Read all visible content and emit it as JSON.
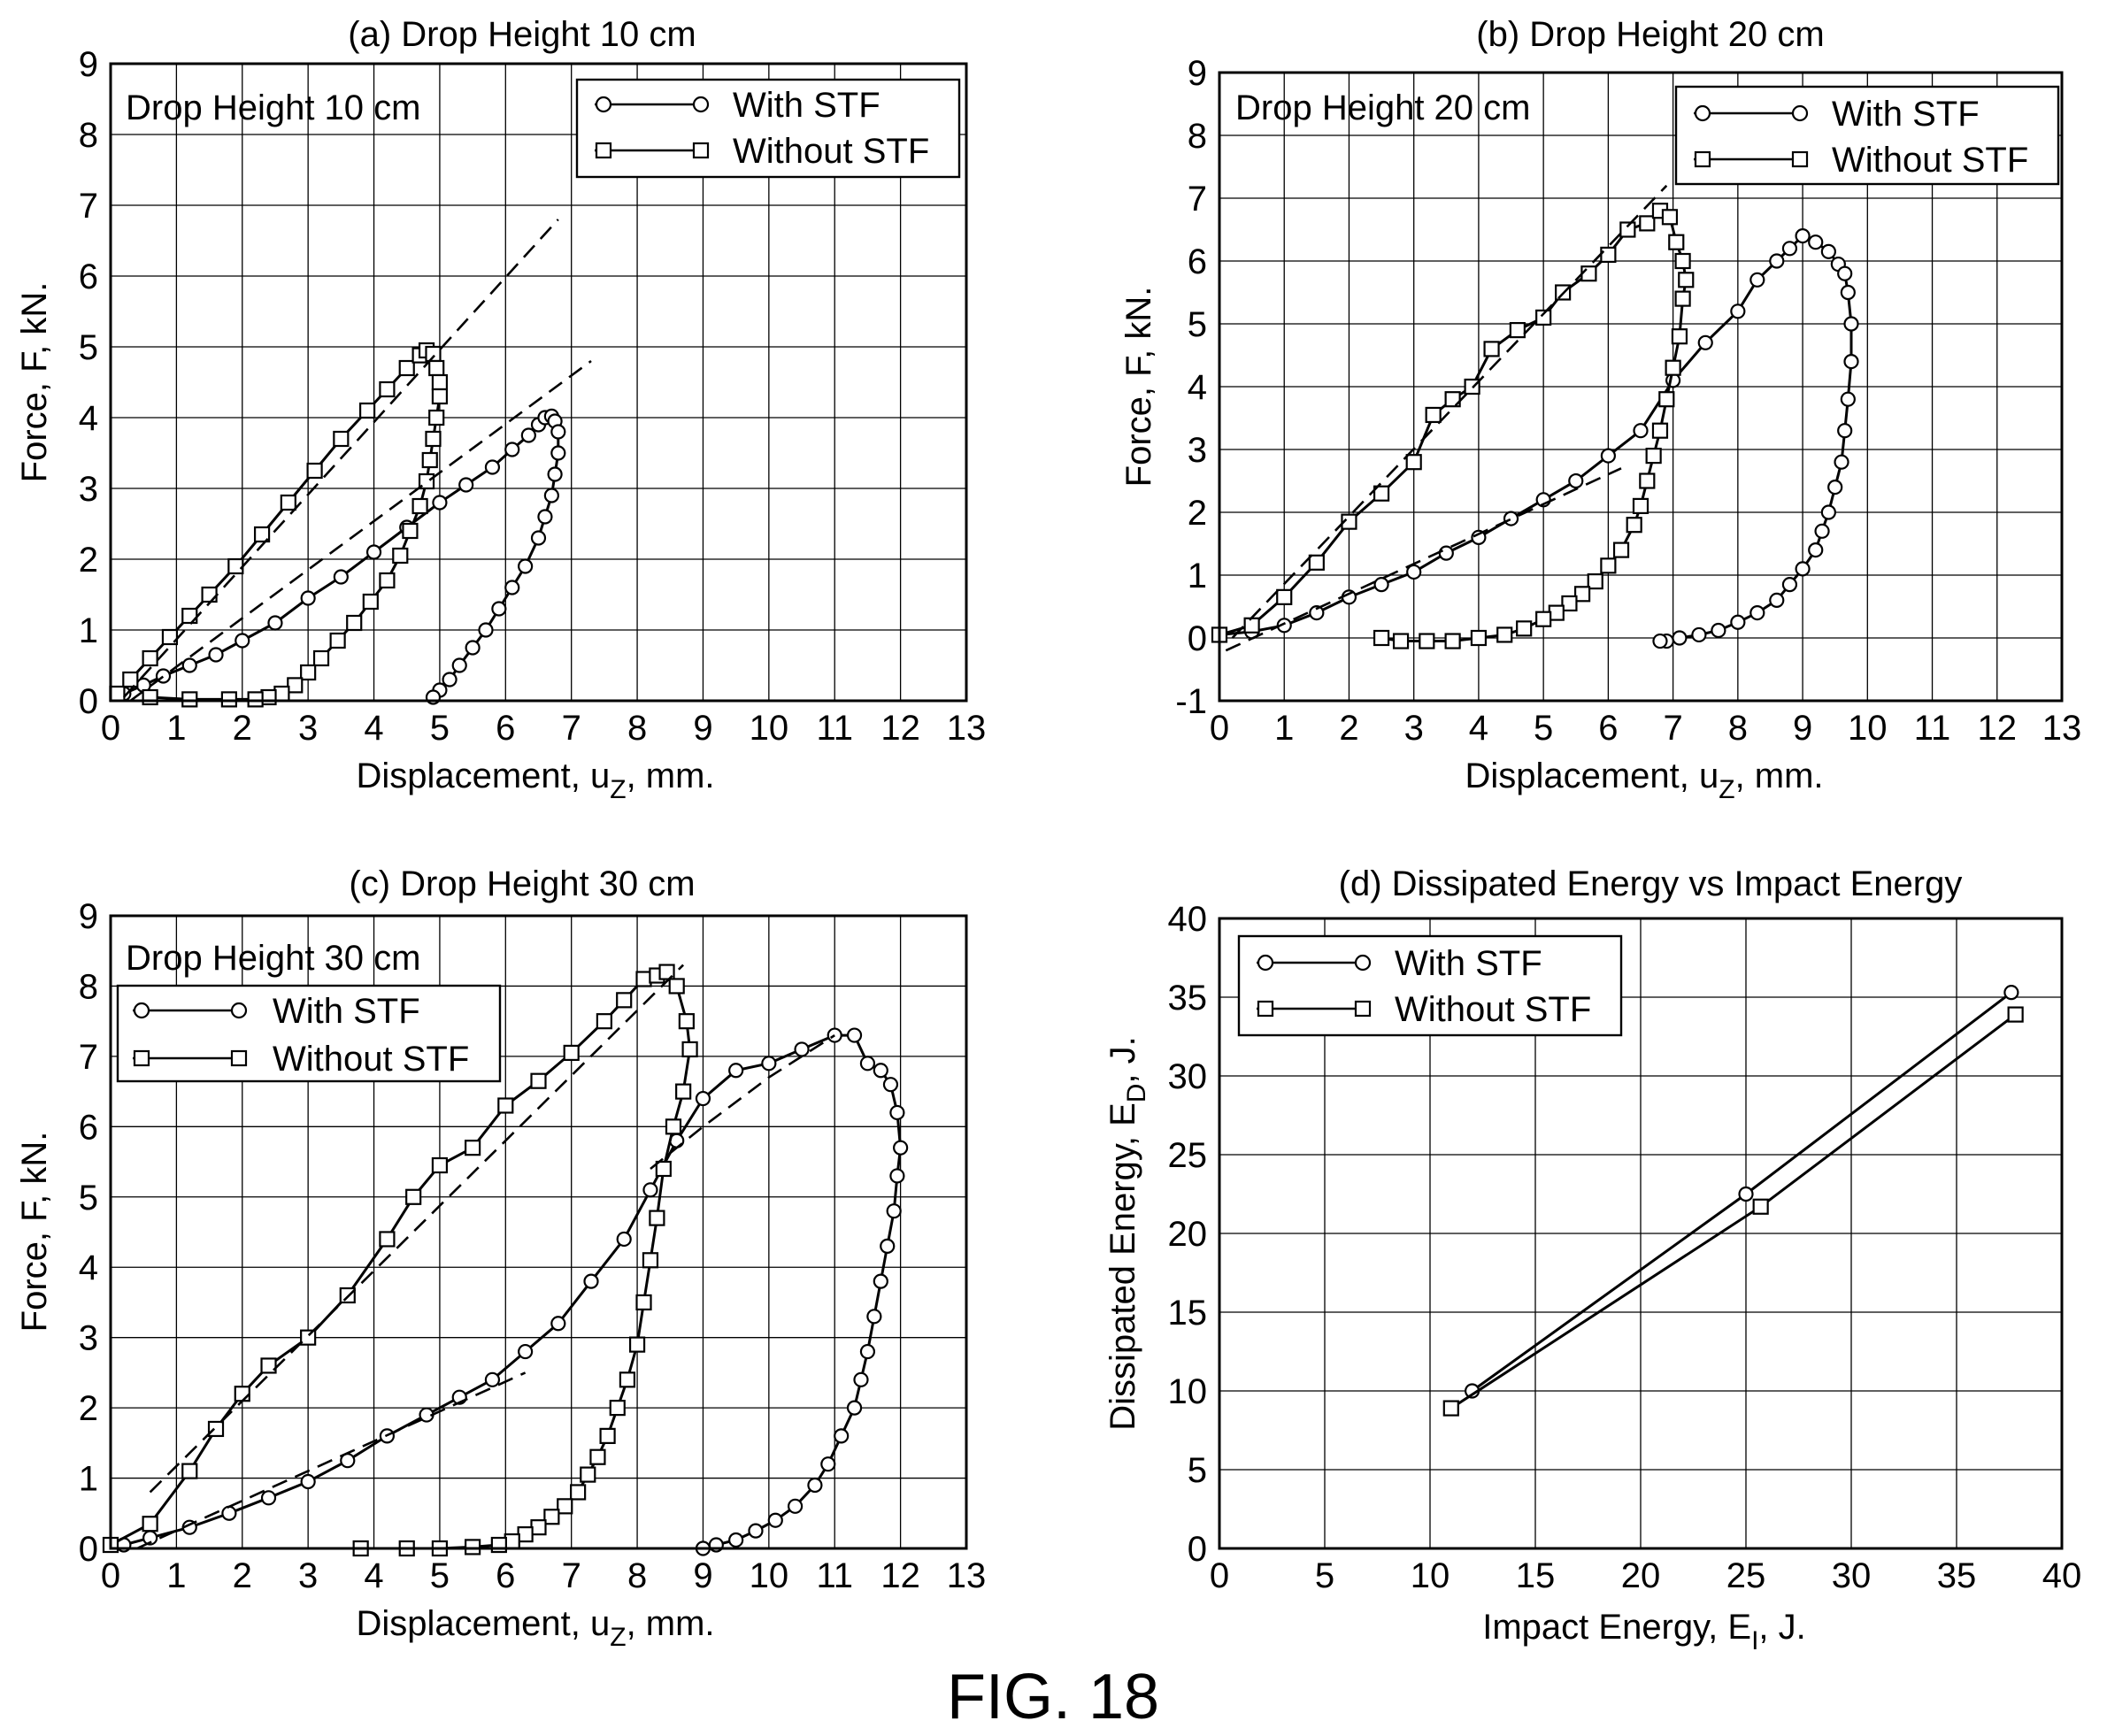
{
  "figure_caption": "FIG. 18",
  "chart_data": [
    {
      "id": "a",
      "type": "line",
      "title": "(a) Drop Height 10 cm",
      "annotation": "Drop Height 10 cm",
      "xlabel": "Displacement, u",
      "xlabel_sub": "Z",
      "xlabel_tail": ", mm.",
      "ylabel": "Force, F, kN.",
      "xlim": [
        0,
        13
      ],
      "ylim": [
        0,
        9
      ],
      "xticks": [
        0,
        1,
        2,
        3,
        4,
        5,
        6,
        7,
        8,
        9,
        10,
        11,
        12,
        13
      ],
      "yticks": [
        0,
        1,
        2,
        3,
        4,
        5,
        6,
        7,
        8,
        9
      ],
      "grid": true,
      "legend_position": "top-right",
      "series": [
        {
          "name": "With STF",
          "marker": "circle",
          "x": [
            0.2,
            0.5,
            0.8,
            1.2,
            1.6,
            2.0,
            2.5,
            3.0,
            3.5,
            4.0,
            4.5,
            5.0,
            5.4,
            5.8,
            6.1,
            6.35,
            6.5,
            6.6,
            6.7,
            6.75,
            6.8,
            6.8,
            6.75,
            6.7,
            6.6,
            6.5,
            6.3,
            6.1,
            5.9,
            5.7,
            5.5,
            5.3,
            5.15,
            5.0,
            4.9
          ],
          "y": [
            0.1,
            0.22,
            0.35,
            0.5,
            0.65,
            0.85,
            1.1,
            1.45,
            1.75,
            2.1,
            2.45,
            2.8,
            3.05,
            3.3,
            3.55,
            3.75,
            3.9,
            4.0,
            4.02,
            3.95,
            3.8,
            3.5,
            3.2,
            2.9,
            2.6,
            2.3,
            1.9,
            1.6,
            1.3,
            1.0,
            0.75,
            0.5,
            0.3,
            0.15,
            0.05
          ]
        },
        {
          "name": "Without STF",
          "marker": "square",
          "x": [
            0.1,
            0.3,
            0.6,
            0.9,
            1.2,
            1.5,
            1.9,
            2.3,
            2.7,
            3.1,
            3.5,
            3.9,
            4.2,
            4.5,
            4.7,
            4.8,
            4.9,
            4.95,
            5.0,
            5.0,
            4.95,
            4.9,
            4.85,
            4.8,
            4.7,
            4.55,
            4.4,
            4.2,
            3.95,
            3.7,
            3.45,
            3.2,
            3.0,
            2.8,
            2.6,
            2.4,
            2.2,
            1.8,
            1.2,
            0.6
          ],
          "y": [
            0.1,
            0.3,
            0.6,
            0.9,
            1.2,
            1.5,
            1.9,
            2.35,
            2.8,
            3.25,
            3.7,
            4.1,
            4.4,
            4.7,
            4.88,
            4.95,
            4.9,
            4.7,
            4.5,
            4.3,
            4.0,
            3.7,
            3.4,
            3.1,
            2.75,
            2.4,
            2.05,
            1.7,
            1.4,
            1.1,
            0.85,
            0.6,
            0.4,
            0.22,
            0.1,
            0.05,
            0.02,
            0.02,
            0.02,
            0.05
          ]
        },
        {
          "name": "fit-with",
          "style": "dashed",
          "x": [
            0.3,
            7.3
          ],
          "y": [
            0.0,
            4.8
          ]
        },
        {
          "name": "fit-without",
          "style": "dashed",
          "x": [
            0.2,
            6.8
          ],
          "y": [
            0.05,
            6.8
          ]
        }
      ]
    },
    {
      "id": "b",
      "type": "line",
      "title": "(b) Drop Height 20 cm",
      "annotation": "Drop Height 20 cm",
      "xlabel": "Displacement, u",
      "xlabel_sub": "Z",
      "xlabel_tail": ", mm.",
      "ylabel": "Force, F, kN.",
      "xlim": [
        0,
        13
      ],
      "ylim": [
        -1,
        9
      ],
      "xticks": [
        0,
        1,
        2,
        3,
        4,
        5,
        6,
        7,
        8,
        9,
        10,
        11,
        12,
        13
      ],
      "yticks": [
        -1,
        0,
        1,
        2,
        3,
        4,
        5,
        6,
        7,
        8,
        9
      ],
      "grid": true,
      "legend_position": "top-right",
      "series": [
        {
          "name": "With STF",
          "marker": "circle",
          "x": [
            0.0,
            0.5,
            1.0,
            1.5,
            2.0,
            2.5,
            3.0,
            3.5,
            4.0,
            4.5,
            5.0,
            5.5,
            6.0,
            6.5,
            7.0,
            7.5,
            8.0,
            8.3,
            8.6,
            8.8,
            9.0,
            9.2,
            9.4,
            9.55,
            9.65,
            9.7,
            9.75,
            9.75,
            9.7,
            9.65,
            9.6,
            9.5,
            9.4,
            9.3,
            9.2,
            9.0,
            8.8,
            8.6,
            8.3,
            8.0,
            7.7,
            7.4,
            7.1,
            6.9,
            6.8
          ],
          "y": [
            0.05,
            0.1,
            0.2,
            0.4,
            0.65,
            0.85,
            1.05,
            1.35,
            1.6,
            1.9,
            2.2,
            2.5,
            2.9,
            3.3,
            4.1,
            4.7,
            5.2,
            5.7,
            6.0,
            6.2,
            6.4,
            6.3,
            6.15,
            5.95,
            5.8,
            5.5,
            5.0,
            4.4,
            3.8,
            3.3,
            2.8,
            2.4,
            2.0,
            1.7,
            1.4,
            1.1,
            0.85,
            0.6,
            0.4,
            0.25,
            0.12,
            0.05,
            0.0,
            -0.05,
            -0.05
          ]
        },
        {
          "name": "Without STF",
          "marker": "square",
          "x": [
            0.0,
            0.5,
            1.0,
            1.5,
            2.0,
            2.5,
            3.0,
            3.3,
            3.6,
            3.9,
            4.2,
            4.6,
            5.0,
            5.3,
            5.7,
            6.0,
            6.3,
            6.6,
            6.8,
            6.95,
            7.05,
            7.15,
            7.2,
            7.15,
            7.1,
            7.0,
            6.9,
            6.8,
            6.7,
            6.6,
            6.5,
            6.4,
            6.2,
            6.0,
            5.8,
            5.6,
            5.4,
            5.2,
            5.0,
            4.7,
            4.4,
            4.0,
            3.6,
            3.2,
            2.8,
            2.5
          ],
          "y": [
            0.05,
            0.2,
            0.65,
            1.2,
            1.85,
            2.3,
            2.8,
            3.55,
            3.8,
            4.0,
            4.6,
            4.9,
            5.1,
            5.5,
            5.8,
            6.1,
            6.5,
            6.6,
            6.8,
            6.7,
            6.3,
            6.0,
            5.7,
            5.4,
            4.8,
            4.3,
            3.8,
            3.3,
            2.9,
            2.5,
            2.1,
            1.8,
            1.4,
            1.15,
            0.9,
            0.7,
            0.55,
            0.4,
            0.3,
            0.15,
            0.05,
            0.0,
            -0.05,
            -0.05,
            -0.05,
            0.0
          ]
        },
        {
          "name": "fit-with",
          "style": "dashed",
          "x": [
            0.1,
            6.2
          ],
          "y": [
            -0.2,
            2.7
          ]
        },
        {
          "name": "fit-without",
          "style": "dashed",
          "x": [
            0.2,
            6.9
          ],
          "y": [
            0.0,
            7.2
          ]
        }
      ]
    },
    {
      "id": "c",
      "type": "line",
      "title": "(c) Drop Height 30 cm",
      "annotation": "Drop Height 30 cm",
      "xlabel": "Displacement, u",
      "xlabel_sub": "Z",
      "xlabel_tail": ", mm.",
      "ylabel": "Force, F, kN.",
      "xlim": [
        0,
        13
      ],
      "ylim": [
        0,
        9
      ],
      "xticks": [
        0,
        1,
        2,
        3,
        4,
        5,
        6,
        7,
        8,
        9,
        10,
        11,
        12,
        13
      ],
      "yticks": [
        0,
        1,
        2,
        3,
        4,
        5,
        6,
        7,
        8,
        9
      ],
      "grid": true,
      "legend_position": "top-left",
      "series": [
        {
          "name": "With STF",
          "marker": "circle",
          "x": [
            0.2,
            0.6,
            1.2,
            1.8,
            2.4,
            3.0,
            3.6,
            4.2,
            4.8,
            5.3,
            5.8,
            6.3,
            6.8,
            7.3,
            7.8,
            8.2,
            8.6,
            9.0,
            9.5,
            10.0,
            10.5,
            11.0,
            11.3,
            11.5,
            11.7,
            11.85,
            11.95,
            12.0,
            11.95,
            11.9,
            11.8,
            11.7,
            11.6,
            11.5,
            11.4,
            11.3,
            11.1,
            10.9,
            10.7,
            10.4,
            10.1,
            9.8,
            9.5,
            9.2,
            9.0
          ],
          "y": [
            0.05,
            0.15,
            0.3,
            0.5,
            0.72,
            0.95,
            1.25,
            1.6,
            1.9,
            2.15,
            2.4,
            2.8,
            3.2,
            3.8,
            4.4,
            5.1,
            5.8,
            6.4,
            6.8,
            6.9,
            7.1,
            7.3,
            7.3,
            6.9,
            6.8,
            6.6,
            6.2,
            5.7,
            5.3,
            4.8,
            4.3,
            3.8,
            3.3,
            2.8,
            2.4,
            2.0,
            1.6,
            1.2,
            0.9,
            0.6,
            0.4,
            0.25,
            0.12,
            0.05,
            0.0
          ]
        },
        {
          "name": "Without STF",
          "marker": "square",
          "x": [
            0.0,
            0.6,
            1.2,
            1.6,
            2.0,
            2.4,
            3.0,
            3.6,
            4.2,
            4.6,
            5.0,
            5.5,
            6.0,
            6.5,
            7.0,
            7.5,
            7.8,
            8.1,
            8.3,
            8.45,
            8.6,
            8.75,
            8.8,
            8.7,
            8.55,
            8.4,
            8.3,
            8.2,
            8.1,
            8.0,
            7.85,
            7.7,
            7.55,
            7.4,
            7.25,
            7.1,
            6.9,
            6.7,
            6.5,
            6.3,
            6.1,
            5.9,
            5.5,
            5.0,
            4.5,
            3.8
          ],
          "y": [
            0.05,
            0.35,
            1.1,
            1.7,
            2.2,
            2.6,
            3.0,
            3.6,
            4.4,
            5.0,
            5.45,
            5.7,
            6.3,
            6.65,
            7.05,
            7.5,
            7.8,
            8.1,
            8.15,
            8.2,
            8.0,
            7.5,
            7.1,
            6.5,
            6.0,
            5.4,
            4.7,
            4.1,
            3.5,
            2.9,
            2.4,
            2.0,
            1.6,
            1.3,
            1.05,
            0.8,
            0.6,
            0.45,
            0.3,
            0.2,
            0.1,
            0.05,
            0.02,
            0.0,
            0.0,
            0.0
          ]
        },
        {
          "name": "fit-with",
          "style": "dashed",
          "x": [
            0.4,
            6.3
          ],
          "y": [
            0.0,
            2.5
          ]
        },
        {
          "name": "fit-without",
          "style": "dashed",
          "x": [
            0.6,
            8.7
          ],
          "y": [
            0.8,
            8.3
          ]
        },
        {
          "name": "fit-with-2",
          "style": "dashed",
          "x": [
            8.2,
            9.0,
            10.0,
            11.0
          ],
          "y": [
            5.4,
            6.0,
            6.7,
            7.3
          ]
        }
      ]
    },
    {
      "id": "d",
      "type": "line",
      "title": "(d) Dissipated Energy vs Impact Energy",
      "xlabel": "Impact Energy, E",
      "xlabel_sub": "I",
      "xlabel_tail": ", J.",
      "ylabel": "Dissipated Energy, E",
      "ylabel_sub": "D",
      "ylabel_tail": ", J.",
      "xlim": [
        0,
        40
      ],
      "ylim": [
        0,
        40
      ],
      "xticks": [
        0,
        5,
        10,
        15,
        20,
        25,
        30,
        35,
        40
      ],
      "yticks": [
        0,
        5,
        10,
        15,
        20,
        25,
        30,
        35,
        40
      ],
      "grid": true,
      "legend_position": "top-left",
      "series": [
        {
          "name": "With STF",
          "marker": "circle",
          "x": [
            12.0,
            25.0,
            37.6
          ],
          "y": [
            10.0,
            22.5,
            35.3
          ]
        },
        {
          "name": "Without STF",
          "marker": "square",
          "x": [
            11.0,
            25.7,
            37.8
          ],
          "y": [
            8.9,
            21.7,
            33.9
          ]
        }
      ]
    }
  ]
}
